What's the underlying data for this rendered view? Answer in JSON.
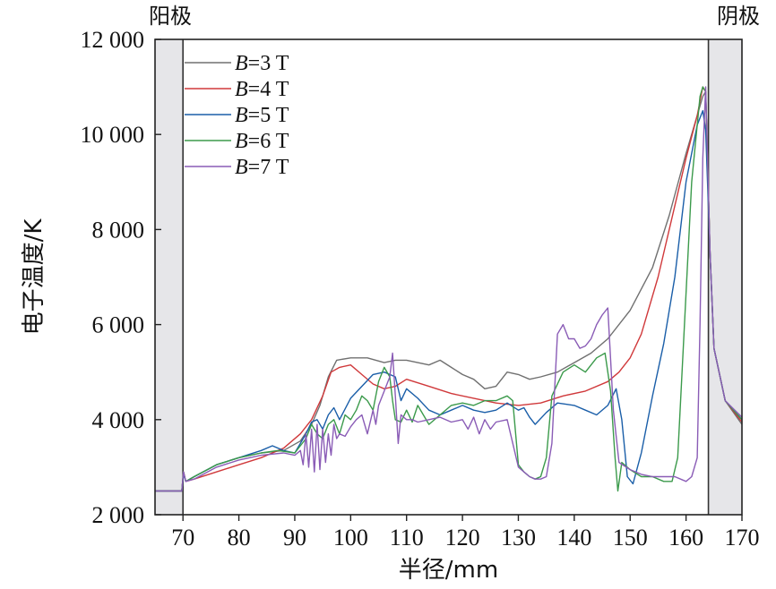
{
  "chart_data": {
    "type": "line",
    "xlabel": "半径/mm",
    "ylabel": "电子温度/K",
    "xlim": [
      65,
      170
    ],
    "ylim": [
      2000,
      12000
    ],
    "xticks": [
      70,
      80,
      90,
      100,
      110,
      120,
      130,
      140,
      150,
      160,
      170
    ],
    "xtick_labels": [
      "70",
      "80",
      "90",
      "100",
      "110",
      "120",
      "130",
      "140",
      "150",
      "160",
      "170"
    ],
    "yticks": [
      2000,
      4000,
      6000,
      8000,
      10000,
      12000
    ],
    "ytick_labels": [
      "2 000",
      "4 000",
      "6 000",
      "8 000",
      "10 000",
      "12 000"
    ],
    "grid": false,
    "legend_position": "top-left",
    "shaded_regions": [
      {
        "x": [
          65,
          70
        ],
        "label": "阳极",
        "label_side": "left",
        "color": "#e6e6e9"
      },
      {
        "x": [
          164,
          170
        ],
        "label": "阴极",
        "label_side": "right",
        "color": "#e6e6e9"
      }
    ],
    "series": [
      {
        "name": "B=3 T",
        "name_italic": "B",
        "name_rest": "=3 T",
        "color": "#707070",
        "x": [
          65,
          69.8,
          70.1,
          70.5,
          72,
          76,
          80,
          84,
          88,
          91,
          93,
          94.5,
          96,
          97.5,
          100,
          103,
          106,
          108,
          110,
          112,
          114,
          116,
          118,
          120,
          122,
          124,
          126,
          128,
          130,
          132,
          134,
          137,
          140,
          143,
          146,
          150,
          154,
          157,
          160,
          162,
          163,
          163.5,
          164.3,
          165,
          167,
          170
        ],
        "y": [
          2500,
          2500,
          2900,
          2700,
          2800,
          3050,
          3200,
          3300,
          3350,
          3550,
          3900,
          4300,
          4900,
          5250,
          5300,
          5300,
          5200,
          5250,
          5250,
          5200,
          5150,
          5250,
          5100,
          4950,
          4850,
          4650,
          4700,
          5000,
          4950,
          4850,
          4900,
          5000,
          5200,
          5400,
          5700,
          6300,
          7200,
          8300,
          9600,
          10400,
          10800,
          10900,
          7500,
          5500,
          4400,
          3900
        ]
      },
      {
        "name": "B=4 T",
        "name_italic": "B",
        "name_rest": "=4 T",
        "color": "#d0393b",
        "x": [
          65,
          69.8,
          70.1,
          70.5,
          72,
          76,
          80,
          84,
          88,
          91,
          93,
          95,
          96.5,
          98,
          100,
          102,
          104,
          106,
          108,
          110,
          114,
          118,
          122,
          126,
          130,
          134,
          138,
          142,
          146,
          148,
          150,
          152,
          155,
          158,
          160,
          162,
          163,
          163.5,
          164.3,
          165,
          167,
          170
        ],
        "y": [
          2500,
          2500,
          2900,
          2700,
          2750,
          2900,
          3050,
          3200,
          3400,
          3700,
          4000,
          4500,
          5000,
          5100,
          5150,
          4950,
          4750,
          4650,
          4700,
          4850,
          4700,
          4550,
          4450,
          4350,
          4300,
          4350,
          4500,
          4600,
          4800,
          5000,
          5300,
          5800,
          7000,
          8500,
          9500,
          10400,
          11000,
          10900,
          7500,
          5500,
          4400,
          3950
        ]
      },
      {
        "name": "B=5 T",
        "name_italic": "B",
        "name_rest": "=5 T",
        "color": "#1a5ea8",
        "x": [
          65,
          69.8,
          70.1,
          70.5,
          72,
          76,
          80,
          84,
          86,
          88,
          90,
          92,
          93,
          94,
          95,
          96,
          97,
          98,
          100,
          102,
          104,
          106,
          108,
          109,
          110,
          112,
          114,
          116,
          118,
          120,
          122,
          124,
          126,
          128,
          130,
          131,
          132,
          133,
          135,
          137,
          140,
          142,
          144,
          146,
          147.5,
          148.5,
          149.5,
          150.5,
          152,
          154,
          156,
          158,
          160,
          162,
          163,
          163.5,
          164.3,
          165,
          167,
          170
        ],
        "y": [
          2500,
          2500,
          2850,
          2700,
          2800,
          3050,
          3200,
          3350,
          3450,
          3350,
          3300,
          3700,
          3950,
          4000,
          3800,
          4100,
          4250,
          4000,
          4450,
          4700,
          4950,
          5000,
          4900,
          4400,
          4650,
          4450,
          4200,
          4100,
          4200,
          4300,
          4200,
          4150,
          4200,
          4350,
          4200,
          4250,
          4050,
          3900,
          4150,
          4350,
          4300,
          4200,
          4100,
          4300,
          4650,
          4000,
          2800,
          2650,
          3300,
          4500,
          5600,
          7000,
          9000,
          10200,
          10500,
          10100,
          7500,
          5500,
          4400,
          4000
        ]
      },
      {
        "name": "B=6 T",
        "name_italic": "B",
        "name_rest": "=6 T",
        "color": "#3b9a4b",
        "x": [
          65,
          69.8,
          70.1,
          70.5,
          72,
          76,
          80,
          84,
          87,
          90,
          92,
          93,
          94,
          95,
          96,
          97,
          98,
          99,
          100,
          101,
          102,
          103,
          104,
          105,
          106,
          107,
          107.5,
          108,
          109,
          110,
          111,
          112,
          114,
          116,
          118,
          120,
          122,
          124,
          126,
          128,
          129,
          130,
          131,
          132,
          133,
          134,
          135,
          136,
          138,
          140,
          142,
          144,
          145.5,
          146.5,
          147.3,
          147.8,
          148.5,
          150,
          152,
          154,
          156,
          157.5,
          158.5,
          159.5,
          161,
          162.5,
          163,
          163.5,
          164.3,
          165,
          167,
          170
        ],
        "y": [
          2500,
          2500,
          2900,
          2700,
          2800,
          3050,
          3200,
          3300,
          3350,
          3300,
          3600,
          3900,
          3700,
          3600,
          3900,
          4000,
          3700,
          4100,
          4000,
          4200,
          4500,
          4400,
          4200,
          4800,
          5100,
          4900,
          4400,
          4000,
          3950,
          4200,
          3950,
          4300,
          3900,
          4100,
          4300,
          4350,
          4300,
          4400,
          4400,
          4500,
          4400,
          3050,
          2900,
          2800,
          2750,
          2800,
          3200,
          4500,
          5000,
          5150,
          5000,
          5300,
          5400,
          4600,
          3200,
          2500,
          3100,
          2950,
          2800,
          2800,
          2700,
          2700,
          3200,
          5500,
          9000,
          10800,
          11000,
          10900,
          7500,
          5500,
          4400,
          4000
        ]
      },
      {
        "name": "B=7 T",
        "name_italic": "B",
        "name_rest": "=7 T",
        "color": "#8a5cb6",
        "x": [
          65,
          69.8,
          70.1,
          70.5,
          72,
          76,
          80,
          84,
          88,
          90,
          91,
          91.5,
          92,
          92.5,
          93,
          93.5,
          94,
          94.5,
          95,
          95.5,
          96,
          96.5,
          97,
          97.5,
          98,
          99,
          100,
          101,
          102,
          103,
          104,
          104.5,
          105,
          106,
          107,
          107.5,
          108,
          108.5,
          109,
          110,
          111,
          112,
          114,
          116,
          118,
          120,
          121,
          122,
          123,
          124,
          125,
          126,
          128,
          130,
          131,
          132,
          133,
          134,
          135,
          136,
          137,
          138,
          139,
          140,
          141,
          142,
          143,
          144,
          145,
          146,
          147,
          148,
          150,
          152,
          154,
          156,
          158,
          160,
          161,
          162,
          162.5,
          163,
          163.5,
          164.3,
          165,
          167,
          170
        ],
        "y": [
          2500,
          2500,
          2900,
          2700,
          2750,
          3000,
          3150,
          3250,
          3300,
          3250,
          3350,
          3050,
          3700,
          3000,
          3800,
          2900,
          3900,
          2950,
          3800,
          3100,
          3700,
          3250,
          3900,
          3600,
          3700,
          3650,
          3850,
          4000,
          4100,
          3700,
          4200,
          3900,
          4300,
          4600,
          4900,
          5400,
          4500,
          3500,
          4100,
          4000,
          4000,
          3950,
          4000,
          4050,
          3950,
          4000,
          3800,
          4050,
          3700,
          4000,
          3800,
          3950,
          4000,
          3000,
          2900,
          2800,
          2750,
          2750,
          2800,
          3500,
          5800,
          6000,
          5700,
          5700,
          5500,
          5550,
          5700,
          6000,
          6200,
          6350,
          4200,
          3100,
          2950,
          2850,
          2800,
          2800,
          2800,
          2700,
          2800,
          3200,
          6000,
          9500,
          11000,
          7500,
          5500,
          4400,
          4050
        ]
      }
    ]
  }
}
